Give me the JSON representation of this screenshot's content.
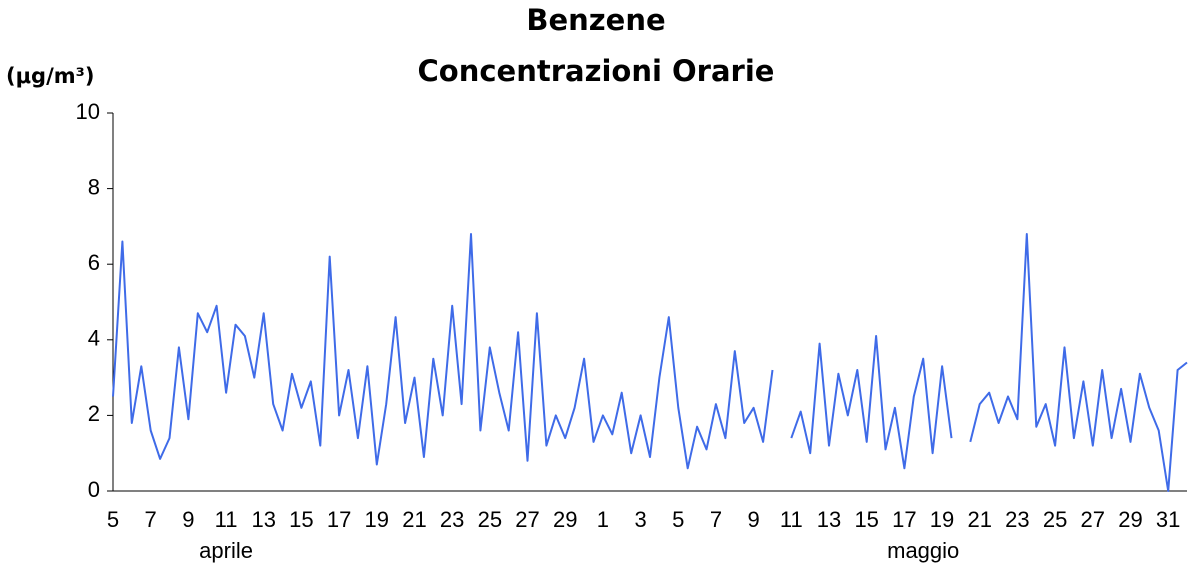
{
  "chart_data": {
    "type": "line",
    "title": "Benzene",
    "subtitle": "Concentrazioni Orarie",
    "y_label": "(μg/m³)",
    "xlim": [
      0,
      57
    ],
    "ylim": [
      0,
      10
    ],
    "yticks": [
      0,
      2,
      4,
      6,
      8,
      10
    ],
    "grid": false,
    "xticks": [
      {
        "value": 0,
        "label": "5"
      },
      {
        "value": 2,
        "label": "7"
      },
      {
        "value": 4,
        "label": "9"
      },
      {
        "value": 6,
        "label": "11"
      },
      {
        "value": 8,
        "label": "13"
      },
      {
        "value": 10,
        "label": "15"
      },
      {
        "value": 12,
        "label": "17"
      },
      {
        "value": 14,
        "label": "19"
      },
      {
        "value": 16,
        "label": "21"
      },
      {
        "value": 18,
        "label": "23"
      },
      {
        "value": 20,
        "label": "25"
      },
      {
        "value": 22,
        "label": "27"
      },
      {
        "value": 24,
        "label": "29"
      },
      {
        "value": 26,
        "label": "1"
      },
      {
        "value": 28,
        "label": "3"
      },
      {
        "value": 30,
        "label": "5"
      },
      {
        "value": 32,
        "label": "7"
      },
      {
        "value": 34,
        "label": "9"
      },
      {
        "value": 36,
        "label": "11"
      },
      {
        "value": 38,
        "label": "13"
      },
      {
        "value": 40,
        "label": "15"
      },
      {
        "value": 42,
        "label": "17"
      },
      {
        "value": 44,
        "label": "19"
      },
      {
        "value": 46,
        "label": "21"
      },
      {
        "value": 48,
        "label": "23"
      },
      {
        "value": 50,
        "label": "25"
      },
      {
        "value": 52,
        "label": "27"
      },
      {
        "value": 54,
        "label": "29"
      },
      {
        "value": 56,
        "label": "31"
      }
    ],
    "x_groups": [
      {
        "value": 6,
        "label": "aprile"
      },
      {
        "value": 43,
        "label": "maggio"
      }
    ],
    "x": [
      0,
      0.5,
      1,
      1.5,
      2,
      2.5,
      3,
      3.5,
      4,
      4.5,
      5,
      5.5,
      6,
      6.5,
      7,
      7.5,
      8,
      8.5,
      9,
      9.5,
      10,
      10.5,
      11,
      11.5,
      12,
      12.5,
      13,
      13.5,
      14,
      14.5,
      15,
      15.5,
      16,
      16.5,
      17,
      17.5,
      18,
      18.5,
      19,
      19.5,
      20,
      20.5,
      21,
      21.5,
      22,
      22.5,
      23,
      23.5,
      24,
      24.5,
      25,
      25.5,
      26,
      26.5,
      27,
      27.5,
      28,
      28.5,
      29,
      29.5,
      30,
      30.5,
      31,
      31.5,
      32,
      32.5,
      33,
      33.5,
      34,
      34.5,
      35,
      35.5,
      36,
      36.5,
      37,
      37.5,
      38,
      38.5,
      39,
      39.5,
      40,
      40.5,
      41,
      41.5,
      42,
      42.5,
      43,
      43.5,
      44,
      44.5,
      45,
      45.5,
      46,
      46.5,
      47,
      47.5,
      48,
      48.5,
      49,
      49.5,
      50,
      50.5,
      51,
      51.5,
      52,
      52.5,
      53,
      53.5,
      54,
      54.5,
      55,
      55.5,
      56,
      56.5,
      57
    ],
    "series": [
      {
        "name": "Benzene",
        "color": "#3f6be8",
        "values": [
          2.5,
          6.6,
          1.8,
          3.3,
          1.6,
          0.85,
          1.4,
          3.8,
          1.9,
          4.7,
          4.2,
          4.9,
          2.6,
          4.4,
          4.1,
          3.0,
          4.7,
          2.3,
          1.6,
          3.1,
          2.2,
          2.9,
          1.2,
          6.2,
          2.0,
          3.2,
          1.4,
          3.3,
          0.7,
          2.3,
          4.6,
          1.8,
          3.0,
          0.9,
          3.5,
          2.0,
          4.9,
          2.3,
          6.8,
          1.6,
          3.8,
          2.6,
          1.6,
          4.2,
          0.8,
          4.7,
          1.2,
          2.0,
          1.4,
          2.2,
          3.5,
          1.3,
          2.0,
          1.5,
          2.6,
          1.0,
          2.0,
          0.9,
          3.0,
          4.6,
          2.2,
          0.6,
          1.7,
          1.1,
          2.3,
          1.4,
          3.7,
          1.8,
          2.2,
          1.3,
          3.2,
          null,
          1.4,
          2.1,
          1.0,
          3.9,
          1.2,
          3.1,
          2.0,
          3.2,
          1.3,
          4.1,
          1.1,
          2.2,
          0.6,
          2.5,
          3.5,
          1.0,
          3.3,
          1.4,
          null,
          1.3,
          2.3,
          2.6,
          1.8,
          2.5,
          1.9,
          6.8,
          1.7,
          2.3,
          1.2,
          3.8,
          1.4,
          2.9,
          1.2,
          3.2,
          1.4,
          2.7,
          1.3,
          3.1,
          2.2,
          1.6,
          0,
          3.2,
          3.4
        ]
      }
    ]
  }
}
